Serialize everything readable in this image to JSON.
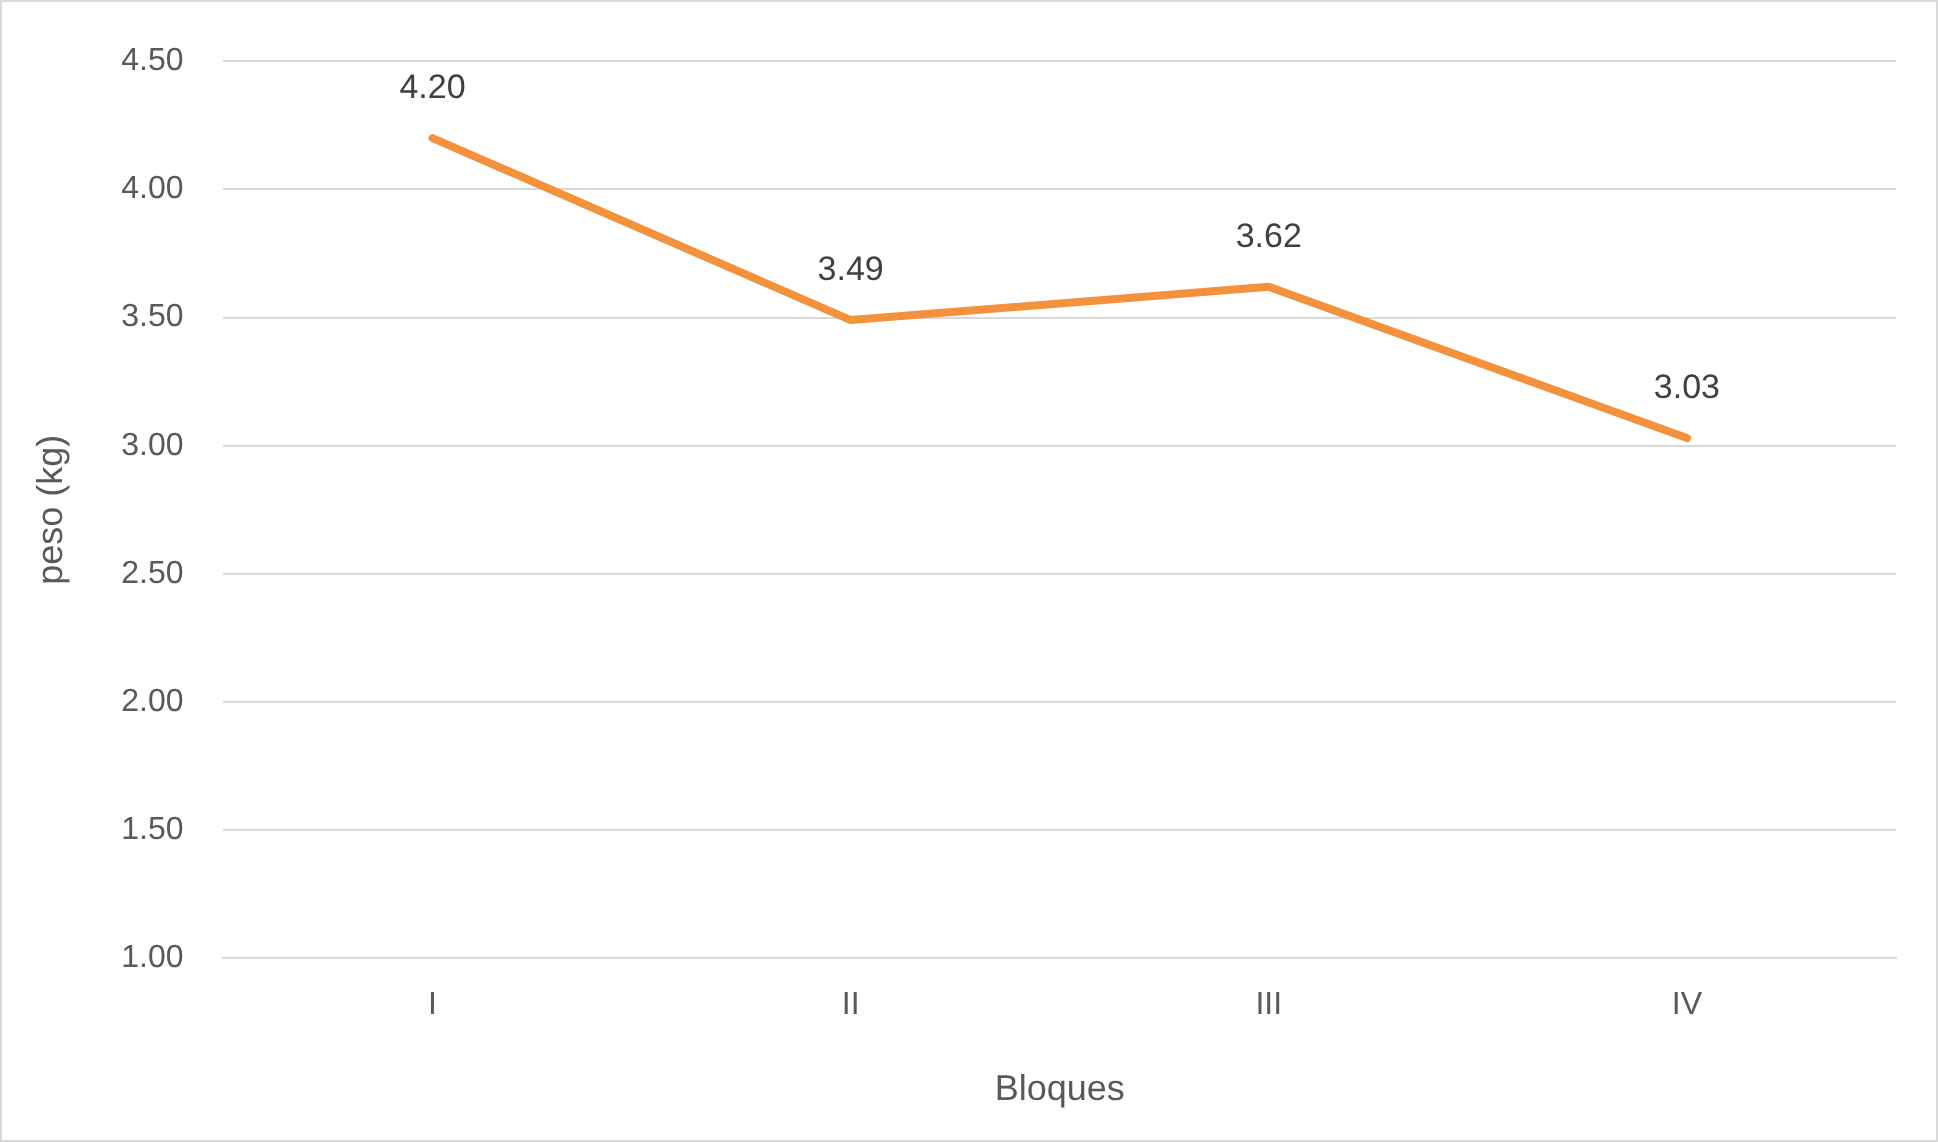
{
  "chart_data": {
    "type": "line",
    "xlabel": "Bloques",
    "ylabel": "peso (kg)",
    "categories": [
      "I",
      "II",
      "III",
      "IV"
    ],
    "series": [
      {
        "color": "#f4913c",
        "values": [
          4.2,
          3.49,
          3.62,
          3.03
        ],
        "value_labels": [
          "4.20",
          "3.49",
          "3.62",
          "3.03"
        ]
      }
    ],
    "ylim": [
      1,
      4.5
    ],
    "yticks": [
      {
        "value": 1,
        "label": "1.00"
      },
      {
        "value": 1.5,
        "label": "1.50"
      },
      {
        "value": 2,
        "label": "2.00"
      },
      {
        "value": 2.5,
        "label": "2.50"
      },
      {
        "value": 3,
        "label": "3.00"
      },
      {
        "value": 3.5,
        "label": "3.50"
      },
      {
        "value": 4,
        "label": "4.00"
      },
      {
        "value": 4.5,
        "label": "4.50"
      }
    ],
    "grid": "y",
    "legend": false,
    "marker": "none",
    "line_style": "solid"
  }
}
